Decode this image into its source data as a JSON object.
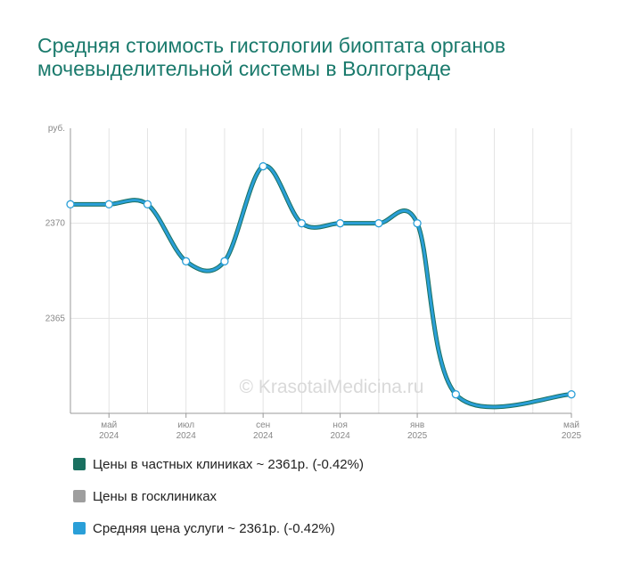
{
  "title": "Средняя стоимость гистологии биоптата органов мочевыделительной системы в Волгограде",
  "watermark": "© KrasotaiMedicina.ru",
  "colors": {
    "private": "#1a7060",
    "public": "#9e9e9e",
    "average": "#2a9fd8",
    "grid": "#e3e3e3",
    "axis": "#999999"
  },
  "legend": [
    {
      "label": "Цены в частных клиниках ~ 2361р. (-0.42%)",
      "color": "#1a7060"
    },
    {
      "label": "Цены в госклиниках",
      "color": "#9e9e9e"
    },
    {
      "label": "Средняя цена услуги ~ 2361р. (-0.42%)",
      "color": "#2a9fd8"
    }
  ],
  "chart_data": {
    "type": "line",
    "y_unit": "руб.",
    "yticks": [
      2365,
      2370
    ],
    "ylim": [
      2360,
      2375
    ],
    "x": [
      "2024-04",
      "2024-05",
      "2024-06",
      "2024-07",
      "2024-08",
      "2024-09",
      "2024-10",
      "2024-11",
      "2024-12",
      "2025-01",
      "2025-02",
      "2025-03",
      "2025-04",
      "2025-05"
    ],
    "xtick_labels": [
      {
        "month": "май",
        "year": "2024"
      },
      {
        "month": "июл",
        "year": "2024"
      },
      {
        "month": "сен",
        "year": "2024"
      },
      {
        "month": "ноя",
        "year": "2024"
      },
      {
        "month": "янв",
        "year": "2025"
      },
      {
        "month": "май",
        "year": "2025"
      }
    ],
    "series": [
      {
        "name": "Цены в частных клиниках",
        "values": [
          2371,
          2371,
          2371,
          2368,
          2368,
          2373,
          2370,
          2370,
          2370,
          2370,
          2361,
          null,
          null,
          2361
        ]
      },
      {
        "name": "Средняя цена услуги",
        "values": [
          2371,
          2371,
          2371,
          2368,
          2368,
          2373,
          2370,
          2370,
          2370,
          2370,
          2361,
          null,
          null,
          2361
        ]
      }
    ],
    "grid": true
  }
}
